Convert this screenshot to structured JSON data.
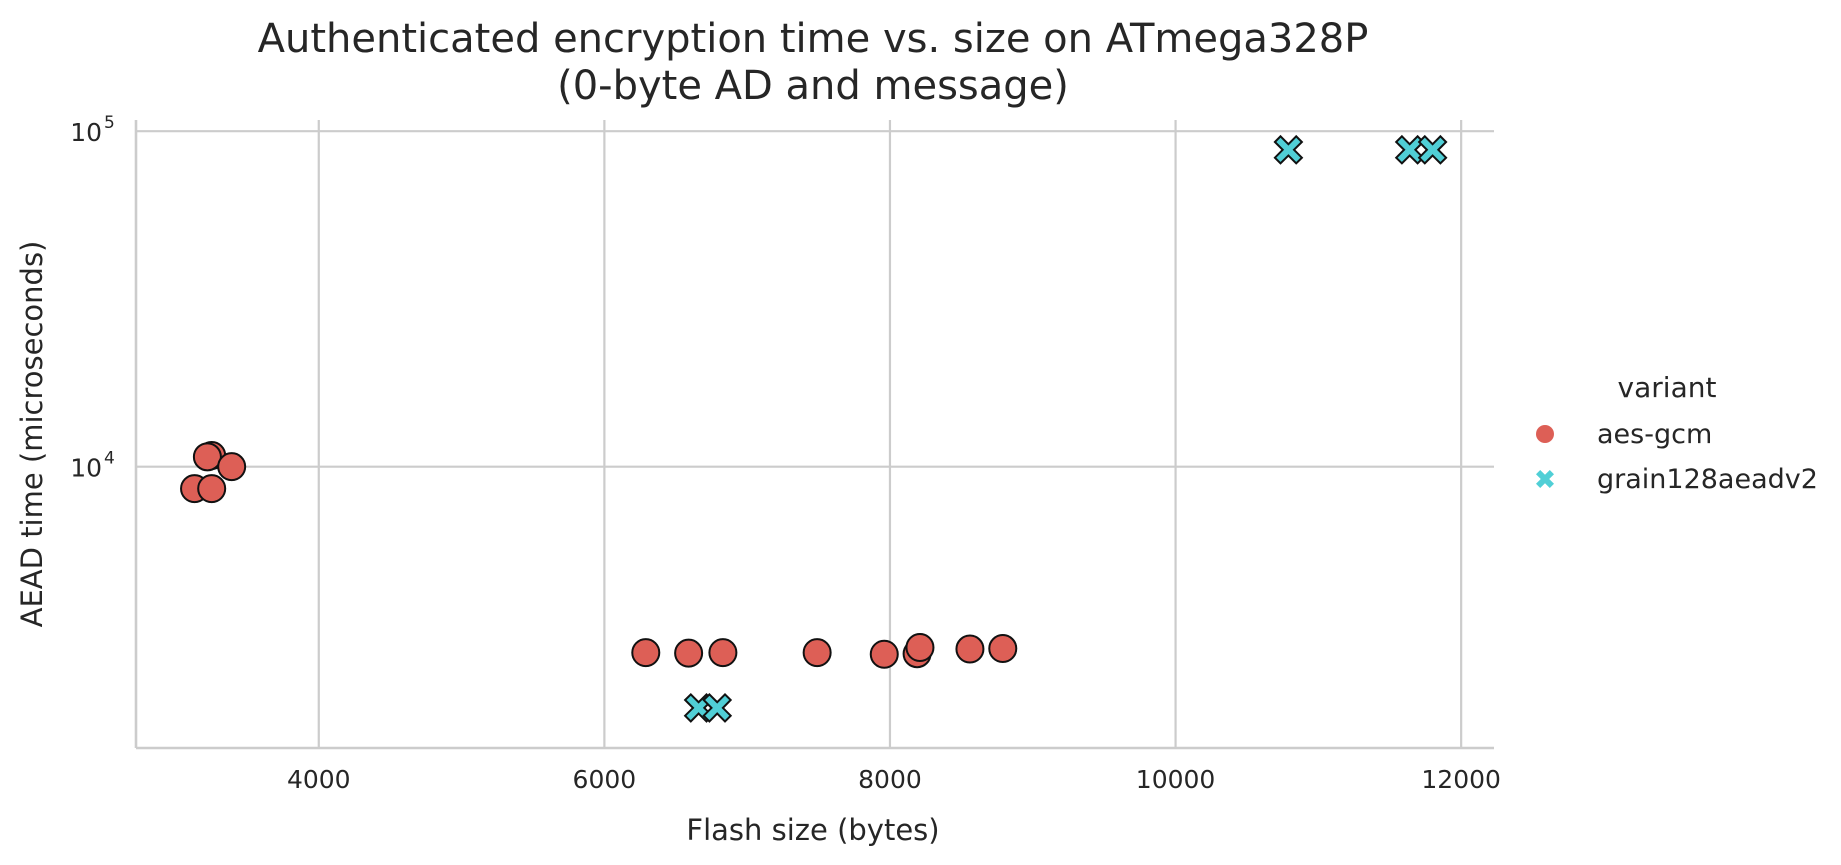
{
  "chart_data": {
    "type": "scatter",
    "title_line1": "Authenticated encryption time vs. size on ATmega328P",
    "title_line2": "(0-byte AD and message)",
    "xlabel": "Flash size (bytes)",
    "ylabel": "AEAD time (microseconds)",
    "xlim": [
      2720,
      12230
    ],
    "ylim": [
      1450,
      108000
    ],
    "yscale": "log",
    "grid": true,
    "x_ticks": [
      {
        "value": 4000,
        "label": "4000"
      },
      {
        "value": 6000,
        "label": "6000"
      },
      {
        "value": 8000,
        "label": "8000"
      },
      {
        "value": 10000,
        "label": "10000"
      },
      {
        "value": 12000,
        "label": "12000"
      }
    ],
    "y_ticks": [
      {
        "value": 10000,
        "base": "10",
        "exp": "4"
      },
      {
        "value": 100000,
        "base": "10",
        "exp": "5"
      }
    ],
    "legend": {
      "title": "variant",
      "placement": "right"
    },
    "series": [
      {
        "name": "aes-gcm",
        "marker": "circle",
        "color": "#dd5f56",
        "points": [
          {
            "x": 3130,
            "y": 8600
          },
          {
            "x": 3250,
            "y": 10800
          },
          {
            "x": 3220,
            "y": 10700
          },
          {
            "x": 3250,
            "y": 8600
          },
          {
            "x": 3390,
            "y": 10000
          },
          {
            "x": 6290,
            "y": 2790
          },
          {
            "x": 6590,
            "y": 2780
          },
          {
            "x": 6830,
            "y": 2790
          },
          {
            "x": 7490,
            "y": 2790
          },
          {
            "x": 7960,
            "y": 2760
          },
          {
            "x": 8190,
            "y": 2770
          },
          {
            "x": 8210,
            "y": 2890
          },
          {
            "x": 8560,
            "y": 2860
          },
          {
            "x": 8790,
            "y": 2870
          }
        ]
      },
      {
        "name": "grain128aeadv2",
        "marker": "x",
        "color": "#50cfd6",
        "points": [
          {
            "x": 6660,
            "y": 1910
          },
          {
            "x": 6790,
            "y": 1910
          },
          {
            "x": 10790,
            "y": 88000
          },
          {
            "x": 11640,
            "y": 88000
          },
          {
            "x": 11800,
            "y": 88000
          }
        ]
      }
    ]
  }
}
